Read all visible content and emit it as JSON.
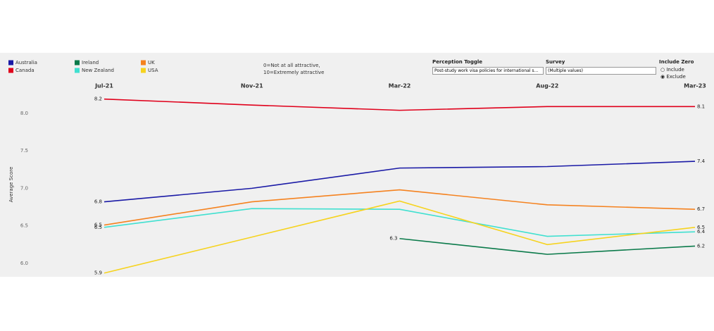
{
  "chart_data": {
    "type": "line",
    "categories": [
      "Jul-21",
      "Nov-21",
      "Mar-22",
      "Aug-22",
      "Mar-23"
    ],
    "y_label": "Average Score",
    "annotations": [
      "0=Not at all attractive,",
      "10=Extremely attractive"
    ],
    "ylim": [
      5.83,
      8.29
    ],
    "yticks": [
      {
        "value": 6,
        "label": "6.0"
      },
      6.5,
      {
        "value": 7,
        "label": "7.0"
      },
      7.5,
      {
        "value": 8,
        "label": "8.0"
      }
    ],
    "grid": false,
    "series": [
      {
        "name": "Australia",
        "color": "#1a1aa6",
        "values": [
          6.82,
          7.0,
          7.27,
          7.29,
          7.36
        ],
        "value_labels": [
          "6.8",
          null,
          null,
          null,
          "7.4"
        ]
      },
      {
        "name": "Canada",
        "color": "#e0001b",
        "values": [
          8.19,
          8.11,
          8.04,
          8.09,
          8.09
        ],
        "value_labels": [
          "8.2",
          null,
          null,
          null,
          "8.1"
        ]
      },
      {
        "name": "Ireland",
        "color": "#0a7a4a",
        "values": [
          null,
          null,
          6.33,
          6.12,
          6.23
        ],
        "value_labels": [
          null,
          null,
          "6.3",
          null,
          "6.2"
        ]
      },
      {
        "name": "New Zealand",
        "color": "#40e0d0",
        "values": [
          6.48,
          6.73,
          6.72,
          6.36,
          6.42
        ],
        "value_labels": [
          "6.5",
          null,
          null,
          null,
          "6.4"
        ]
      },
      {
        "name": "UK",
        "color": "#f5821f",
        "values": [
          6.51,
          6.82,
          6.98,
          6.78,
          6.72
        ],
        "value_labels": [
          "6.5",
          null,
          null,
          null,
          "6.7"
        ]
      },
      {
        "name": "USA",
        "color": "#f6d31f",
        "values": [
          5.87,
          6.35,
          6.83,
          6.25,
          6.48
        ],
        "value_labels": [
          "5.9",
          null,
          null,
          null,
          "6.5"
        ]
      }
    ]
  },
  "controls": {
    "perception": {
      "label": "Perception Toggle",
      "value": "Post-study work visa policies for international s..."
    },
    "survey": {
      "label": "Survey",
      "value": "(Multiple values)"
    },
    "include_zero": {
      "label": "Include Zero",
      "options": [
        "Include",
        "Exclude"
      ]
    }
  }
}
